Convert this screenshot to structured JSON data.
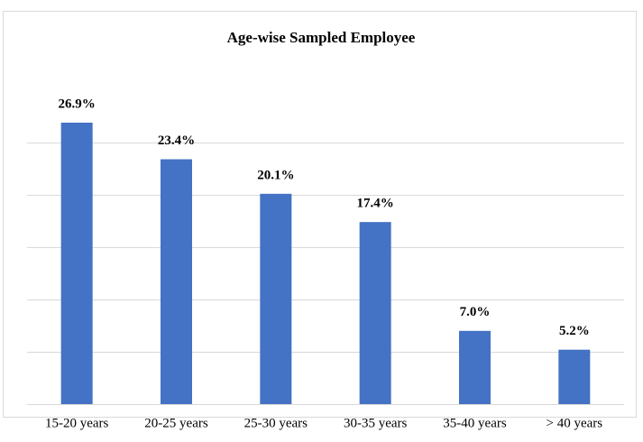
{
  "chart_data": {
    "type": "bar",
    "title": "Age-wise Sampled Employee",
    "categories": [
      "15-20 years",
      "20-25 years",
      "25-30 years",
      "30-35 years",
      "35-40 years",
      "> 40 years"
    ],
    "values": [
      26.9,
      23.4,
      20.1,
      17.4,
      7.0,
      5.2
    ],
    "value_labels": [
      "26.9%",
      "23.4%",
      "20.1%",
      "17.4%",
      "7.0%",
      "5.2%"
    ],
    "color": "#4472c4",
    "ylim": [
      0,
      30
    ],
    "yticks": [
      0,
      5,
      10,
      15,
      20,
      25
    ],
    "grid": true
  }
}
